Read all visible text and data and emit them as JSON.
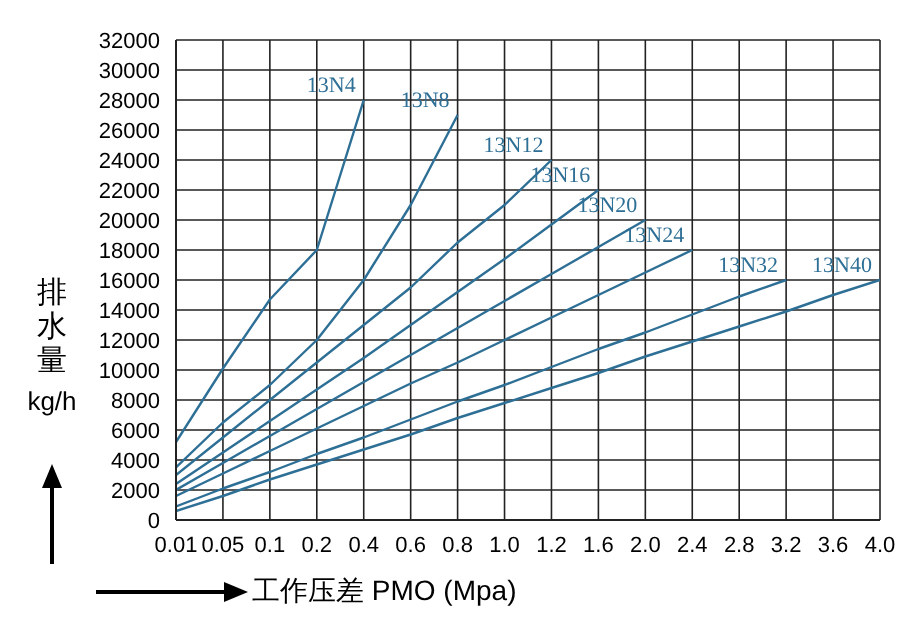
{
  "chart_data": {
    "type": "line",
    "xlabel": "工作压差 PMO (Mpa)",
    "ylabel": "排水量 kg/h",
    "categories": [
      "0.01",
      "0.05",
      "0.1",
      "0.2",
      "0.4",
      "0.6",
      "0.8",
      "1.0",
      "1.2",
      "1.6",
      "2.0",
      "2.4",
      "2.8",
      "3.2",
      "3.6",
      "4.0"
    ],
    "ylim": [
      0,
      32000
    ],
    "yticks": [
      0,
      2000,
      4000,
      6000,
      8000,
      10000,
      12000,
      14000,
      16000,
      18000,
      20000,
      22000,
      24000,
      26000,
      28000,
      30000,
      32000
    ],
    "grid": true,
    "legend": false,
    "marker": "none",
    "line_style": "solid",
    "series": [
      {
        "name": "13N4",
        "color": "#2e6f96",
        "values": [
          5200,
          10100,
          14700,
          18000,
          28000,
          null,
          null,
          null,
          null,
          null,
          null,
          null,
          null,
          null,
          null,
          null
        ]
      },
      {
        "name": "13N8",
        "color": "#2e6f96",
        "values": [
          3500,
          6500,
          9000,
          12000,
          16000,
          21000,
          27000,
          null,
          null,
          null,
          null,
          null,
          null,
          null,
          null,
          null
        ]
      },
      {
        "name": "13N12",
        "color": "#2e6f96",
        "values": [
          3000,
          5500,
          8000,
          10500,
          13000,
          15500,
          18500,
          21000,
          24000,
          null,
          null,
          null,
          null,
          null,
          null,
          null
        ]
      },
      {
        "name": "13N16",
        "color": "#2e6f96",
        "values": [
          2400,
          4500,
          6600,
          8700,
          10800,
          13000,
          15200,
          17400,
          19700,
          22000,
          null,
          null,
          null,
          null,
          null,
          null
        ]
      },
      {
        "name": "13N20",
        "color": "#2e6f96",
        "values": [
          2000,
          3800,
          5600,
          7400,
          9200,
          11000,
          12800,
          14600,
          16400,
          18200,
          20000,
          null,
          null,
          null,
          null,
          null
        ]
      },
      {
        "name": "13N24",
        "color": "#2e6f96",
        "values": [
          1600,
          3100,
          4600,
          6100,
          7600,
          9100,
          10500,
          12000,
          13500,
          15000,
          16500,
          18000,
          null,
          null,
          null,
          null
        ]
      },
      {
        "name": "13N32",
        "color": "#2e6f96",
        "values": [
          900,
          2100,
          3200,
          4400,
          5500,
          6700,
          7900,
          9000,
          10200,
          11400,
          12500,
          13700,
          14900,
          16000,
          null,
          null
        ]
      },
      {
        "name": "13N40",
        "color": "#2e6f96",
        "values": [
          600,
          1600,
          2700,
          3700,
          4700,
          5700,
          6800,
          7800,
          8800,
          9800,
          10900,
          11900,
          12900,
          13900,
          15000,
          16000
        ]
      }
    ]
  }
}
